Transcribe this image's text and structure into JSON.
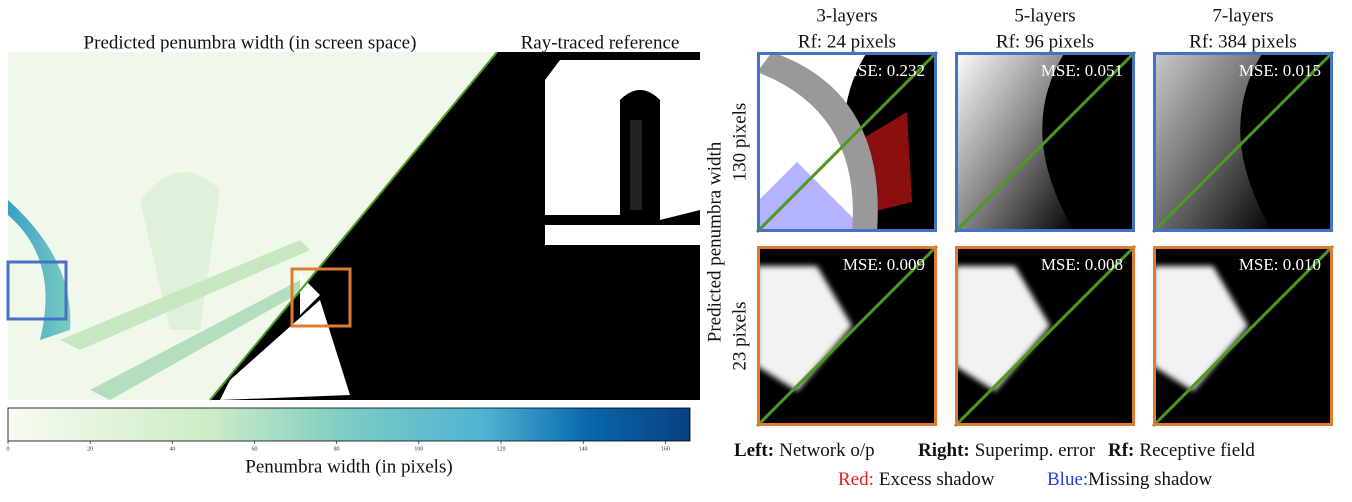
{
  "left": {
    "title": "Predicted penumbra width (in screen space)",
    "reference_title": "Ray-traced reference",
    "colorbar": {
      "label": "Penumbra width (in pixels)",
      "lim": [
        0,
        166
      ],
      "ticks": [
        0,
        20,
        40,
        60,
        80,
        100,
        120,
        140,
        160
      ]
    }
  },
  "columns": [
    {
      "name": "3-layers",
      "rf": "Rf: 24 pixels"
    },
    {
      "name": "5-layers",
      "rf": "Rf: 96 pixels"
    },
    {
      "name": "7-layers",
      "rf": "Rf: 384 pixels"
    }
  ],
  "row_axis_title": "Predicted penumbra width",
  "rows": [
    {
      "label": "130 pixels",
      "mse": [
        "MSE: 0.232",
        "MSE: 0.051",
        "MSE: 0.015"
      ]
    },
    {
      "label": "23 pixels",
      "mse": [
        "MSE: 0.009",
        "MSE: 0.008",
        "MSE: 0.010"
      ]
    }
  ],
  "legend": [
    {
      "key": "Left:",
      "text": "Network o/p"
    },
    {
      "key": "Right:",
      "text": "Superimp. error"
    },
    {
      "key": "Rf:",
      "text": "Receptive field"
    }
  ],
  "color_legend": [
    {
      "key": "Red:",
      "text": "Excess shadow"
    },
    {
      "key": "Blue:",
      "text": "Missing shadow"
    }
  ]
}
